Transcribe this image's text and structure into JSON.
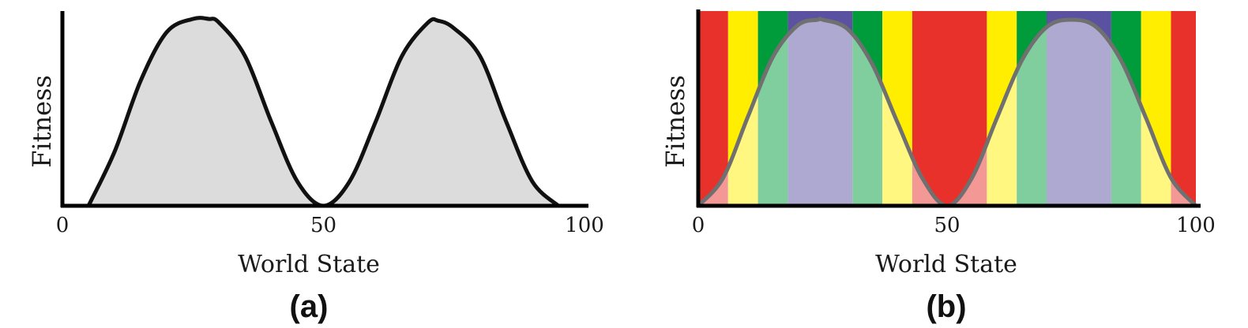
{
  "panels": [
    {
      "panel_label": "(a)",
      "chart_data": {
        "type": "area",
        "title": "",
        "xlabel": "World State",
        "ylabel": "Fitness",
        "xlim": [
          0,
          100
        ],
        "ylim": [
          0,
          1
        ],
        "x_ticks": [
          "0",
          "50",
          "100"
        ],
        "x_tick_values": [
          0,
          50,
          100
        ],
        "grid": false,
        "legend": "none",
        "curve": {
          "x": [
            5,
            10,
            15,
            20,
            25,
            28,
            30,
            35,
            40,
            45,
            50,
            55,
            60,
            65,
            70,
            72,
            75,
            80,
            85,
            90,
            95
          ],
          "y": [
            0.0,
            0.29,
            0.67,
            0.93,
            1.0,
            1.0,
            0.98,
            0.8,
            0.45,
            0.13,
            0.0,
            0.13,
            0.45,
            0.8,
            0.98,
            0.99,
            0.95,
            0.8,
            0.45,
            0.13,
            0.0
          ]
        },
        "fill_color": "#dcdcdc",
        "line_color": "#111111"
      }
    },
    {
      "panel_label": "(b)",
      "chart_data": {
        "type": "area",
        "title": "",
        "xlabel": "World State",
        "ylabel": "Fitness",
        "xlim": [
          0,
          100
        ],
        "ylim": [
          0,
          1
        ],
        "x_ticks": [
          "0",
          "50",
          "100"
        ],
        "x_tick_values": [
          0,
          50,
          100
        ],
        "grid": false,
        "legend": "none",
        "background_bands": [
          {
            "x0": 0,
            "x1": 6,
            "color": "#e8312b"
          },
          {
            "x0": 6,
            "x1": 12,
            "color": "#ffee00"
          },
          {
            "x0": 12,
            "x1": 18,
            "color": "#009b3a"
          },
          {
            "x0": 18,
            "x1": 31,
            "color": "#5a52a0"
          },
          {
            "x0": 31,
            "x1": 37,
            "color": "#009b3a"
          },
          {
            "x0": 37,
            "x1": 43,
            "color": "#ffee00"
          },
          {
            "x0": 43,
            "x1": 58,
            "color": "#e8312b"
          },
          {
            "x0": 58,
            "x1": 64,
            "color": "#ffee00"
          },
          {
            "x0": 64,
            "x1": 70,
            "color": "#009b3a"
          },
          {
            "x0": 70,
            "x1": 83,
            "color": "#5a52a0"
          },
          {
            "x0": 83,
            "x1": 89,
            "color": "#009b3a"
          },
          {
            "x0": 89,
            "x1": 95,
            "color": "#ffee00"
          },
          {
            "x0": 95,
            "x1": 100,
            "color": "#e8312b"
          }
        ],
        "curve": {
          "x": [
            0,
            5,
            10,
            15,
            20,
            24,
            25,
            30,
            35,
            40,
            45,
            50,
            55,
            60,
            65,
            70,
            75,
            80,
            85,
            90,
            95,
            100
          ],
          "y": [
            0.0,
            0.15,
            0.48,
            0.8,
            0.97,
            1.0,
            1.0,
            0.95,
            0.76,
            0.45,
            0.15,
            0.0,
            0.15,
            0.47,
            0.78,
            0.96,
            1.0,
            0.96,
            0.78,
            0.47,
            0.15,
            0.0
          ]
        },
        "fill_color": "#ffffff",
        "fill_opacity": 0.5,
        "line_color": "#707070"
      }
    }
  ]
}
